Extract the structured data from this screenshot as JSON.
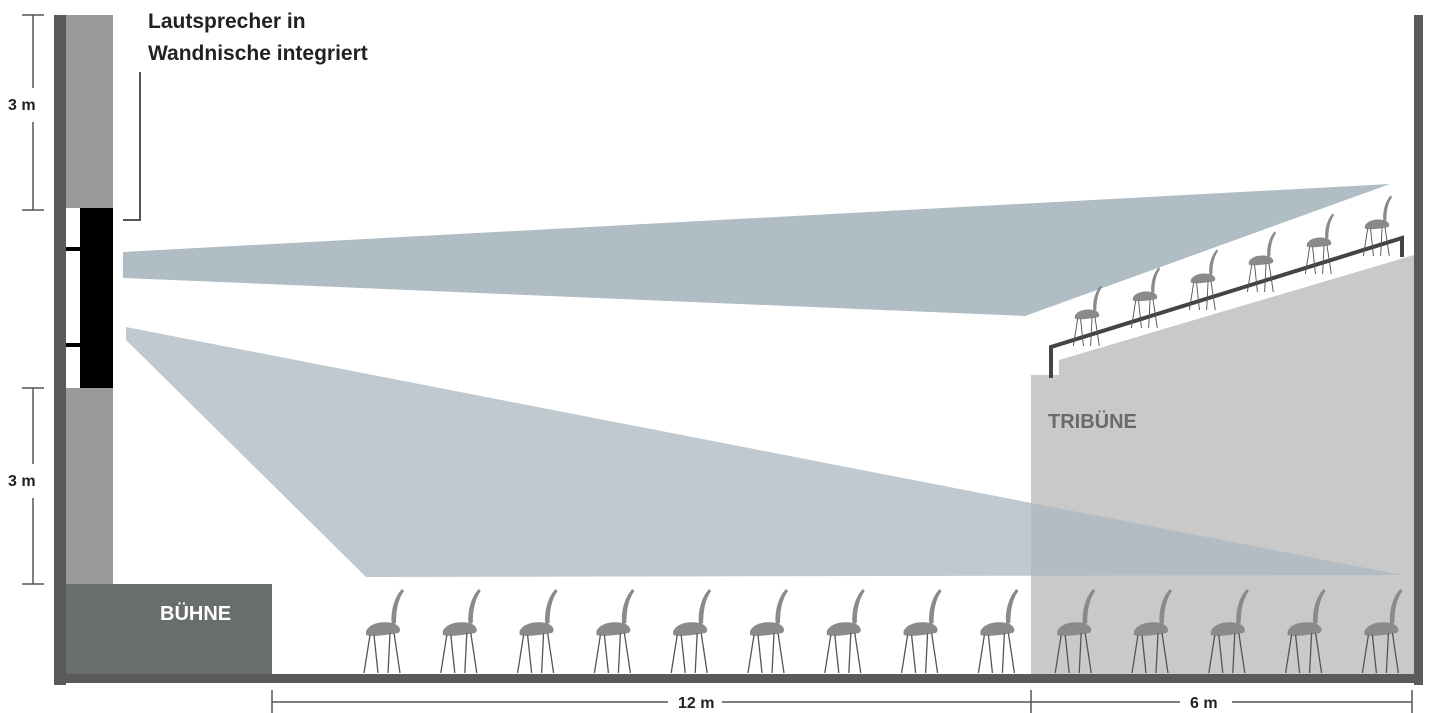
{
  "speaker_caption": {
    "line1": "Lautsprecher in",
    "line2": "Wandnische integriert"
  },
  "labels": {
    "stage": "BÜHNE",
    "tribune": "TRIBÜNE"
  },
  "dimensions": {
    "upper_height": "3 m",
    "lower_height": "3 m",
    "floor_length": "12 m",
    "tribune_length": "6 m"
  },
  "counts": {
    "floor_chairs": 14,
    "tribune_chairs": 6
  },
  "colors": {
    "wall": "#5a5a5a",
    "wall_panel": "#9a9a9a",
    "stage": "#6a6d6d",
    "speaker": "#000000",
    "beam": "#a9b7bf",
    "tribune": "#c9c9c9",
    "chair": "#8a8a8a",
    "dimension_line": "#555555"
  }
}
